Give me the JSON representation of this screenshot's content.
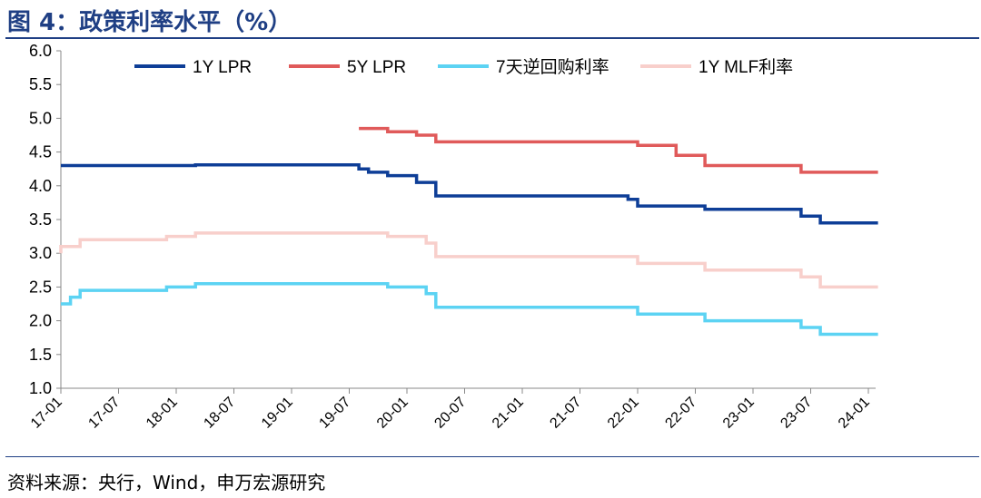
{
  "header": {
    "title": "图 4：政策利率水平（%）"
  },
  "footer": {
    "source": "资料来源：央行，Wind，申万宏源研究"
  },
  "chart_data": {
    "type": "line",
    "title": "图 4：政策利率水平（%）",
    "xlabel": "",
    "ylabel": "",
    "ylim": [
      1.0,
      6.0
    ],
    "yticks": [
      "1.0",
      "1.5",
      "2.0",
      "2.5",
      "3.0",
      "3.5",
      "4.0",
      "4.5",
      "5.0",
      "5.5",
      "6.0"
    ],
    "xticks": [
      "17-01",
      "17-07",
      "18-01",
      "18-07",
      "19-01",
      "19-07",
      "20-01",
      "20-07",
      "21-01",
      "21-07",
      "22-01",
      "22-07",
      "23-01",
      "23-07",
      "24-01"
    ],
    "x_range": [
      "2017-01",
      "2024-01"
    ],
    "grid": false,
    "legend_position": "top",
    "series": [
      {
        "name": "1Y LPR",
        "color": "#0e3e97",
        "step": true,
        "points": [
          [
            "2017-01",
            4.3
          ],
          [
            "2018-03",
            4.31
          ],
          [
            "2019-08",
            4.25
          ],
          [
            "2019-09",
            4.2
          ],
          [
            "2019-11",
            4.15
          ],
          [
            "2020-02",
            4.05
          ],
          [
            "2020-04",
            3.85
          ],
          [
            "2021-12",
            3.8
          ],
          [
            "2022-01",
            3.7
          ],
          [
            "2022-08",
            3.65
          ],
          [
            "2023-06",
            3.55
          ],
          [
            "2023-08",
            3.45
          ],
          [
            "2024-02",
            3.45
          ]
        ]
      },
      {
        "name": "5Y LPR",
        "color": "#e05a5a",
        "step": true,
        "points": [
          [
            "2019-08",
            4.85
          ],
          [
            "2019-11",
            4.8
          ],
          [
            "2020-02",
            4.75
          ],
          [
            "2020-04",
            4.65
          ],
          [
            "2022-01",
            4.6
          ],
          [
            "2022-05",
            4.45
          ],
          [
            "2022-08",
            4.3
          ],
          [
            "2023-06",
            4.2
          ],
          [
            "2024-02",
            4.2
          ]
        ]
      },
      {
        "name": "7天逆回购利率",
        "color": "#5cd3f3",
        "step": true,
        "points": [
          [
            "2017-01",
            2.25
          ],
          [
            "2017-02",
            2.35
          ],
          [
            "2017-03",
            2.45
          ],
          [
            "2017-12",
            2.5
          ],
          [
            "2018-03",
            2.55
          ],
          [
            "2019-11",
            2.5
          ],
          [
            "2020-03",
            2.4
          ],
          [
            "2020-04",
            2.2
          ],
          [
            "2022-01",
            2.1
          ],
          [
            "2022-08",
            2.0
          ],
          [
            "2023-06",
            1.9
          ],
          [
            "2023-08",
            1.8
          ],
          [
            "2024-02",
            1.8
          ]
        ]
      },
      {
        "name": "1Y MLF利率",
        "color": "#f8cfcb",
        "step": true,
        "points": [
          [
            "2017-01",
            3.0
          ],
          [
            "2017-01",
            3.1
          ],
          [
            "2017-03",
            3.2
          ],
          [
            "2017-12",
            3.25
          ],
          [
            "2018-03",
            3.3
          ],
          [
            "2019-11",
            3.25
          ],
          [
            "2020-03",
            3.15
          ],
          [
            "2020-04",
            2.95
          ],
          [
            "2022-01",
            2.85
          ],
          [
            "2022-08",
            2.75
          ],
          [
            "2023-06",
            2.65
          ],
          [
            "2023-08",
            2.5
          ],
          [
            "2024-02",
            2.5
          ]
        ]
      }
    ]
  }
}
